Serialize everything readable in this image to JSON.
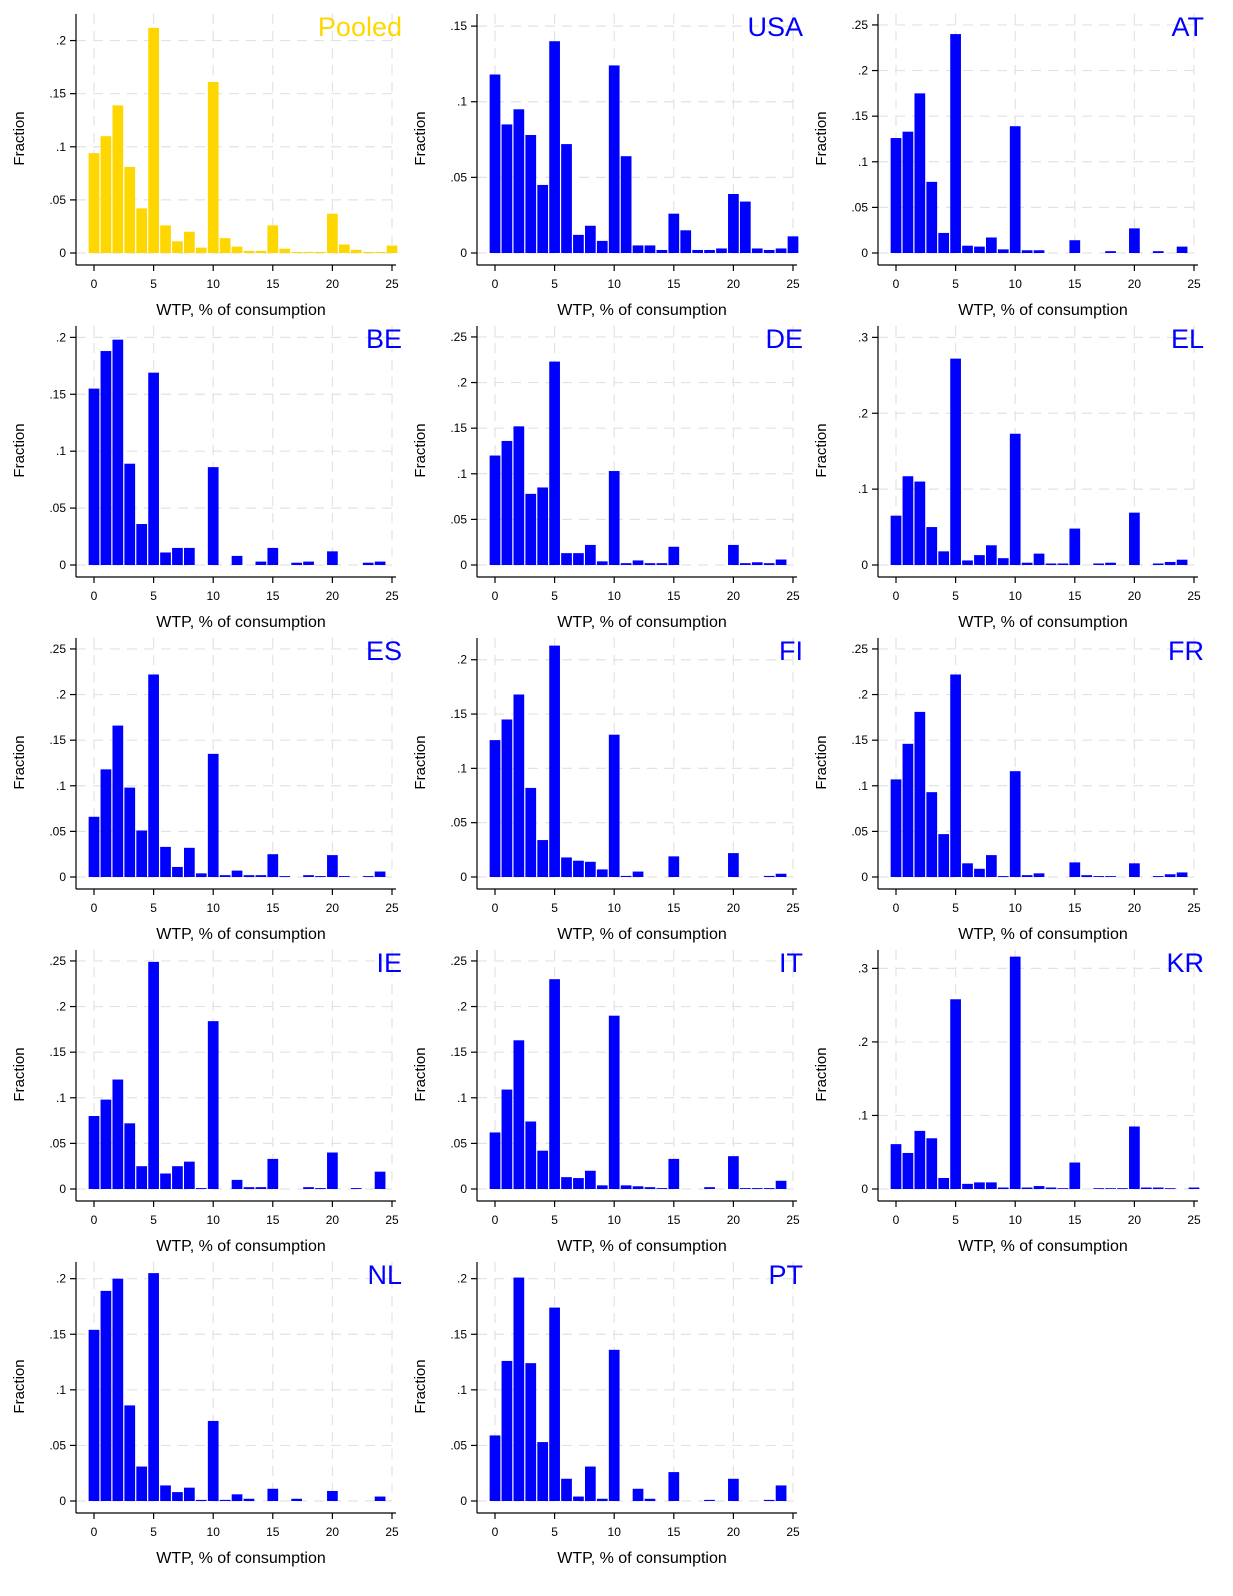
{
  "colors": {
    "pooled": "#FFD700",
    "country": "#0000FF",
    "axis": "#000000",
    "grid": "#e3e3e3"
  },
  "chart_data": [
    {
      "type": "bar",
      "title": "Pooled",
      "color": "#FFD700",
      "xlabel": "WTP, % of consumption",
      "ylabel": "Fraction",
      "xlim": [
        0,
        25
      ],
      "xticks": [
        "0",
        "5",
        "10",
        "15",
        "20",
        "25"
      ],
      "yticks": [
        "0",
        ".05",
        ".1",
        ".15",
        ".2"
      ],
      "ylim": [
        0,
        0.225
      ],
      "grid": true,
      "x": [
        0,
        1,
        2,
        3,
        4,
        5,
        6,
        7,
        8,
        9,
        10,
        11,
        12,
        13,
        14,
        15,
        16,
        17,
        18,
        19,
        20,
        21,
        22,
        23,
        24,
        25
      ],
      "values": [
        0.094,
        0.11,
        0.139,
        0.081,
        0.042,
        0.212,
        0.026,
        0.011,
        0.02,
        0.005,
        0.161,
        0.014,
        0.006,
        0.002,
        0.002,
        0.026,
        0.004,
        0.001,
        0.001,
        0.001,
        0.037,
        0.008,
        0.003,
        0.001,
        0.001,
        0.007
      ]
    },
    {
      "type": "bar",
      "title": "USA",
      "color": "#0000FF",
      "xlabel": "WTP, % of consumption",
      "ylabel": "Fraction",
      "xlim": [
        0,
        25
      ],
      "xticks": [
        "0",
        "5",
        "10",
        "15",
        "20",
        "25"
      ],
      "yticks": [
        "0",
        ".05",
        ".1",
        ".15"
      ],
      "ylim": [
        0,
        0.158
      ],
      "grid": true,
      "x": [
        0,
        1,
        2,
        3,
        4,
        5,
        6,
        7,
        8,
        9,
        10,
        11,
        12,
        13,
        14,
        15,
        16,
        17,
        18,
        19,
        20,
        21,
        22,
        23,
        24,
        25
      ],
      "values": [
        0.118,
        0.085,
        0.095,
        0.078,
        0.045,
        0.14,
        0.072,
        0.012,
        0.018,
        0.008,
        0.124,
        0.064,
        0.005,
        0.005,
        0.002,
        0.026,
        0.015,
        0.002,
        0.002,
        0.003,
        0.039,
        0.034,
        0.003,
        0.002,
        0.003,
        0.011
      ]
    },
    {
      "type": "bar",
      "title": "AT",
      "color": "#0000FF",
      "xlabel": "WTP, % of consumption",
      "ylabel": "Fraction",
      "xlim": [
        0,
        25
      ],
      "xticks": [
        "0",
        "5",
        "10",
        "15",
        "20",
        "25"
      ],
      "yticks": [
        "0",
        ".05",
        ".1",
        ".15",
        ".2",
        ".25"
      ],
      "ylim": [
        0,
        0.262
      ],
      "grid": true,
      "x": [
        0,
        1,
        2,
        3,
        4,
        5,
        6,
        7,
        8,
        9,
        10,
        11,
        12,
        15,
        18,
        20,
        22,
        24
      ],
      "values": [
        0.126,
        0.133,
        0.175,
        0.078,
        0.022,
        0.24,
        0.008,
        0.007,
        0.017,
        0.004,
        0.139,
        0.003,
        0.003,
        0.014,
        0.002,
        0.027,
        0.002,
        0.007
      ]
    },
    {
      "type": "bar",
      "title": "BE",
      "color": "#0000FF",
      "xlabel": "WTP, % of consumption",
      "ylabel": "Fraction",
      "xlim": [
        0,
        25
      ],
      "xticks": [
        "0",
        "5",
        "10",
        "15",
        "20",
        "25"
      ],
      "yticks": [
        "0",
        ".05",
        ".1",
        ".15",
        ".2"
      ],
      "ylim": [
        0,
        0.21
      ],
      "grid": true,
      "x": [
        0,
        1,
        2,
        3,
        4,
        5,
        6,
        7,
        8,
        10,
        12,
        14,
        15,
        17,
        18,
        20,
        23,
        24
      ],
      "values": [
        0.155,
        0.188,
        0.198,
        0.089,
        0.036,
        0.169,
        0.011,
        0.015,
        0.015,
        0.086,
        0.008,
        0.003,
        0.015,
        0.002,
        0.003,
        0.012,
        0.002,
        0.003
      ]
    },
    {
      "type": "bar",
      "title": "DE",
      "color": "#0000FF",
      "xlabel": "WTP, % of consumption",
      "ylabel": "Fraction",
      "xlim": [
        0,
        25
      ],
      "xticks": [
        "0",
        "5",
        "10",
        "15",
        "20",
        "25"
      ],
      "yticks": [
        "0",
        ".05",
        ".1",
        ".15",
        ".2",
        ".25"
      ],
      "ylim": [
        0,
        0.262
      ],
      "grid": true,
      "x": [
        0,
        1,
        2,
        3,
        4,
        5,
        6,
        7,
        8,
        9,
        10,
        11,
        12,
        13,
        14,
        15,
        20,
        21,
        22,
        23,
        24
      ],
      "values": [
        0.12,
        0.136,
        0.152,
        0.078,
        0.085,
        0.223,
        0.013,
        0.013,
        0.022,
        0.004,
        0.103,
        0.002,
        0.005,
        0.002,
        0.002,
        0.02,
        0.022,
        0.002,
        0.003,
        0.002,
        0.006
      ]
    },
    {
      "type": "bar",
      "title": "EL",
      "color": "#0000FF",
      "xlabel": "WTP, % of consumption",
      "ylabel": "Fraction",
      "xlim": [
        0,
        25
      ],
      "xticks": [
        "0",
        "5",
        "10",
        "15",
        "20",
        "25"
      ],
      "yticks": [
        "0",
        ".1",
        ".2",
        ".3"
      ],
      "ylim": [
        0,
        0.315
      ],
      "grid": true,
      "x": [
        0,
        1,
        2,
        3,
        4,
        5,
        6,
        7,
        8,
        9,
        10,
        11,
        12,
        13,
        14,
        15,
        17,
        18,
        20,
        22,
        23,
        24
      ],
      "values": [
        0.065,
        0.117,
        0.11,
        0.05,
        0.018,
        0.272,
        0.006,
        0.013,
        0.026,
        0.009,
        0.173,
        0.003,
        0.015,
        0.002,
        0.002,
        0.048,
        0.002,
        0.003,
        0.069,
        0.002,
        0.004,
        0.007
      ]
    },
    {
      "type": "bar",
      "title": "ES",
      "color": "#0000FF",
      "xlabel": "WTP, % of consumption",
      "ylabel": "Fraction",
      "xlim": [
        0,
        25
      ],
      "xticks": [
        "0",
        "5",
        "10",
        "15",
        "20",
        "25"
      ],
      "yticks": [
        "0",
        ".05",
        ".1",
        ".15",
        ".2",
        ".25"
      ],
      "ylim": [
        0,
        0.262
      ],
      "grid": true,
      "x": [
        0,
        1,
        2,
        3,
        4,
        5,
        6,
        7,
        8,
        9,
        10,
        11,
        12,
        13,
        14,
        15,
        16,
        18,
        19,
        20,
        21,
        23,
        24
      ],
      "values": [
        0.066,
        0.118,
        0.166,
        0.098,
        0.051,
        0.222,
        0.033,
        0.011,
        0.032,
        0.004,
        0.135,
        0.002,
        0.007,
        0.002,
        0.002,
        0.025,
        0.001,
        0.002,
        0.001,
        0.024,
        0.001,
        0.001,
        0.006
      ]
    },
    {
      "type": "bar",
      "title": "FI",
      "color": "#0000FF",
      "xlabel": "WTP, % of consumption",
      "ylabel": "Fraction",
      "xlim": [
        0,
        25
      ],
      "xticks": [
        "0",
        "5",
        "10",
        "15",
        "20",
        "25"
      ],
      "yticks": [
        "0",
        ".05",
        ".1",
        ".15",
        ".2"
      ],
      "ylim": [
        0,
        0.22
      ],
      "grid": true,
      "x": [
        0,
        1,
        2,
        3,
        4,
        5,
        6,
        7,
        8,
        9,
        10,
        11,
        12,
        15,
        20,
        23,
        24
      ],
      "values": [
        0.126,
        0.145,
        0.168,
        0.082,
        0.034,
        0.213,
        0.018,
        0.015,
        0.014,
        0.007,
        0.131,
        0.001,
        0.005,
        0.019,
        0.022,
        0.001,
        0.003
      ]
    },
    {
      "type": "bar",
      "title": "FR",
      "color": "#0000FF",
      "xlabel": "WTP, % of consumption",
      "ylabel": "Fraction",
      "xlim": [
        0,
        25
      ],
      "xticks": [
        "0",
        "5",
        "10",
        "15",
        "20",
        "25"
      ],
      "yticks": [
        "0",
        ".05",
        ".1",
        ".15",
        ".2",
        ".25"
      ],
      "ylim": [
        0,
        0.262
      ],
      "grid": true,
      "x": [
        0,
        1,
        2,
        3,
        4,
        5,
        6,
        7,
        8,
        9,
        10,
        11,
        12,
        15,
        16,
        17,
        18,
        20,
        22,
        23,
        24
      ],
      "values": [
        0.107,
        0.146,
        0.181,
        0.093,
        0.047,
        0.222,
        0.015,
        0.009,
        0.024,
        0.001,
        0.116,
        0.002,
        0.004,
        0.016,
        0.002,
        0.001,
        0.001,
        0.015,
        0.001,
        0.003,
        0.005
      ]
    },
    {
      "type": "bar",
      "title": "IE",
      "color": "#0000FF",
      "xlabel": "WTP, % of consumption",
      "ylabel": "Fraction",
      "xlim": [
        0,
        25
      ],
      "xticks": [
        "0",
        "5",
        "10",
        "15",
        "20",
        "25"
      ],
      "yticks": [
        "0",
        ".05",
        ".1",
        ".15",
        ".2",
        ".25"
      ],
      "ylim": [
        0,
        0.262
      ],
      "grid": true,
      "x": [
        0,
        1,
        2,
        3,
        4,
        5,
        6,
        7,
        8,
        9,
        10,
        12,
        13,
        14,
        15,
        18,
        19,
        20,
        22,
        24
      ],
      "values": [
        0.08,
        0.098,
        0.12,
        0.072,
        0.025,
        0.249,
        0.017,
        0.025,
        0.03,
        0.001,
        0.184,
        0.01,
        0.002,
        0.002,
        0.033,
        0.002,
        0.001,
        0.04,
        0.001,
        0.019
      ]
    },
    {
      "type": "bar",
      "title": "IT",
      "color": "#0000FF",
      "xlabel": "WTP, % of consumption",
      "ylabel": "Fraction",
      "xlim": [
        0,
        25
      ],
      "xticks": [
        "0",
        "5",
        "10",
        "15",
        "20",
        "25"
      ],
      "yticks": [
        "0",
        ".05",
        ".1",
        ".15",
        ".2",
        ".25"
      ],
      "ylim": [
        0,
        0.262
      ],
      "grid": true,
      "x": [
        0,
        1,
        2,
        3,
        4,
        5,
        6,
        7,
        8,
        9,
        10,
        11,
        12,
        13,
        14,
        15,
        18,
        20,
        21,
        22,
        23,
        24
      ],
      "values": [
        0.062,
        0.109,
        0.163,
        0.074,
        0.042,
        0.23,
        0.013,
        0.012,
        0.02,
        0.004,
        0.19,
        0.004,
        0.003,
        0.002,
        0.001,
        0.033,
        0.002,
        0.036,
        0.001,
        0.001,
        0.001,
        0.009
      ]
    },
    {
      "type": "bar",
      "title": "KR",
      "color": "#0000FF",
      "xlabel": "WTP, % of consumption",
      "ylabel": "Fraction",
      "xlim": [
        0,
        25
      ],
      "xticks": [
        "0",
        "5",
        "10",
        "15",
        "20",
        "25"
      ],
      "yticks": [
        "0",
        ".1",
        ".2",
        ".3"
      ],
      "ylim": [
        0,
        0.325
      ],
      "grid": true,
      "x": [
        0,
        1,
        2,
        3,
        4,
        5,
        6,
        7,
        8,
        9,
        10,
        11,
        12,
        13,
        14,
        15,
        17,
        18,
        19,
        20,
        21,
        22,
        23,
        25
      ],
      "values": [
        0.061,
        0.049,
        0.079,
        0.069,
        0.015,
        0.258,
        0.007,
        0.009,
        0.009,
        0.002,
        0.316,
        0.002,
        0.004,
        0.002,
        0.001,
        0.036,
        0.001,
        0.001,
        0.001,
        0.085,
        0.002,
        0.002,
        0.001,
        0.002
      ]
    },
    {
      "type": "bar",
      "title": "NL",
      "color": "#0000FF",
      "xlabel": "WTP, % of consumption",
      "ylabel": "Fraction",
      "xlim": [
        0,
        25
      ],
      "xticks": [
        "0",
        "5",
        "10",
        "15",
        "20",
        "25"
      ],
      "yticks": [
        "0",
        ".05",
        ".1",
        ".15",
        ".2"
      ],
      "ylim": [
        0,
        0.215
      ],
      "grid": true,
      "x": [
        0,
        1,
        2,
        3,
        4,
        5,
        6,
        7,
        8,
        9,
        10,
        11,
        12,
        13,
        15,
        17,
        20,
        24
      ],
      "values": [
        0.154,
        0.189,
        0.2,
        0.086,
        0.031,
        0.205,
        0.014,
        0.008,
        0.012,
        0.001,
        0.072,
        0.001,
        0.006,
        0.002,
        0.011,
        0.002,
        0.009,
        0.004
      ]
    },
    {
      "type": "bar",
      "title": "PT",
      "color": "#0000FF",
      "xlabel": "WTP, % of consumption",
      "ylabel": "Fraction",
      "xlim": [
        0,
        25
      ],
      "xticks": [
        "0",
        "5",
        "10",
        "15",
        "20",
        "25"
      ],
      "yticks": [
        "0",
        ".05",
        ".1",
        ".15",
        ".2"
      ],
      "ylim": [
        0,
        0.215
      ],
      "grid": true,
      "x": [
        0,
        1,
        2,
        3,
        4,
        5,
        6,
        7,
        8,
        9,
        10,
        12,
        13,
        15,
        18,
        20,
        23,
        24
      ],
      "values": [
        0.059,
        0.126,
        0.201,
        0.124,
        0.053,
        0.174,
        0.02,
        0.004,
        0.031,
        0.002,
        0.136,
        0.011,
        0.002,
        0.026,
        0.001,
        0.02,
        0.001,
        0.014
      ]
    }
  ]
}
